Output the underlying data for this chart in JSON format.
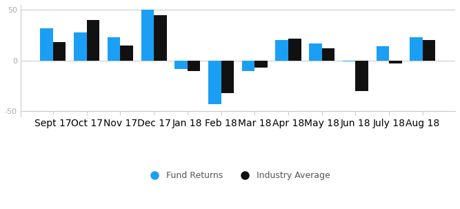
{
  "categories": [
    "Sept 17",
    "Oct 17",
    "Nov 17",
    "Dec 17",
    "Jan 18",
    "Feb 18",
    "Mar 18",
    "Apr 18",
    "May 18",
    "Jun 18",
    "July 18",
    "Aug 18"
  ],
  "fund_returns": [
    32,
    28,
    23,
    50,
    -8,
    -43,
    -10,
    20,
    17,
    -1,
    14,
    23
  ],
  "industry_average": [
    18,
    40,
    15,
    45,
    -10,
    -32,
    -7,
    22,
    12,
    -30,
    -3,
    20
  ],
  "fund_color": "#1a9ff5",
  "industry_color": "#111111",
  "ylim": [
    -55,
    55
  ],
  "yticks": [
    -50,
    0,
    50
  ],
  "bar_width": 0.38,
  "legend_fund": "Fund Returns",
  "legend_industry": "Industry Average",
  "background_color": "#ffffff",
  "grid_color": "#cccccc",
  "tick_label_color": "#aaaaaa",
  "legend_fontsize": 9,
  "tick_fontsize": 8,
  "left_spine_color": "#cccccc"
}
